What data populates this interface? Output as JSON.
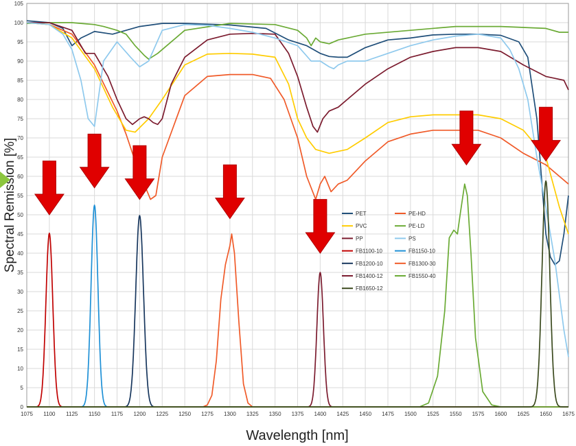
{
  "chart_data": {
    "type": "line",
    "xlabel": "Wavelength [nm]",
    "ylabel": "Spectral Remission [%]",
    "xlim": [
      1075,
      1675
    ],
    "ylim": [
      0,
      105
    ],
    "x_ticks": [
      1075,
      1100,
      1125,
      1150,
      1175,
      1200,
      1225,
      1250,
      1275,
      1300,
      1325,
      1350,
      1375,
      1400,
      1425,
      1450,
      1475,
      1500,
      1525,
      1550,
      1575,
      1600,
      1625,
      1650,
      1675
    ],
    "y_ticks": [
      0,
      5,
      10,
      15,
      20,
      25,
      30,
      35,
      40,
      45,
      50,
      55,
      60,
      65,
      70,
      75,
      80,
      85,
      90,
      95,
      100,
      105
    ],
    "grid": true,
    "legend_position": "center-right",
    "legend": [
      "PET",
      "PE-HD",
      "PVC",
      "PE-LD",
      "PP",
      "PS",
      "FB1100-10",
      "FB1150-10",
      "FB1200-10",
      "FB1300-30",
      "FB1400-12",
      "FB1550-40",
      "FB1650-12"
    ],
    "series": [
      {
        "name": "PET",
        "color": "#1f4e79",
        "x": [
          1075,
          1100,
          1115,
          1125,
          1135,
          1150,
          1170,
          1185,
          1200,
          1225,
          1250,
          1300,
          1340,
          1365,
          1385,
          1400,
          1410,
          1420,
          1430,
          1450,
          1475,
          1500,
          1525,
          1550,
          1575,
          1600,
          1620,
          1630,
          1640,
          1650,
          1655,
          1660,
          1665,
          1670,
          1675
        ],
        "y": [
          100.5,
          100,
          98.5,
          94,
          96,
          97.7,
          97,
          98,
          99,
          99.8,
          99.8,
          99.4,
          98.5,
          95.5,
          94,
          92,
          91.2,
          91,
          91,
          93.5,
          95.5,
          96,
          96.8,
          97,
          97,
          96.7,
          95,
          91,
          75,
          45,
          39,
          37,
          38,
          45,
          55
        ]
      },
      {
        "name": "PE-HD",
        "color": "#f05a28",
        "x": [
          1075,
          1100,
          1125,
          1150,
          1175,
          1185,
          1195,
          1205,
          1212,
          1218,
          1225,
          1250,
          1275,
          1300,
          1325,
          1345,
          1360,
          1375,
          1385,
          1395,
          1400,
          1405,
          1412,
          1420,
          1430,
          1450,
          1475,
          1500,
          1525,
          1550,
          1575,
          1600,
          1625,
          1650,
          1675
        ],
        "y": [
          100,
          99.5,
          97,
          89,
          77,
          71,
          64,
          58,
          54,
          55,
          65,
          81,
          86,
          86.5,
          86.5,
          85.5,
          80,
          70,
          60,
          54,
          58,
          60,
          56,
          58,
          59,
          64,
          69,
          71,
          72,
          72,
          72,
          70,
          66,
          63,
          58
        ]
      },
      {
        "name": "PVC",
        "color": "#ffcc00",
        "x": [
          1075,
          1100,
          1125,
          1150,
          1170,
          1185,
          1195,
          1210,
          1225,
          1250,
          1275,
          1300,
          1325,
          1350,
          1365,
          1375,
          1385,
          1395,
          1410,
          1420,
          1430,
          1450,
          1475,
          1500,
          1525,
          1550,
          1575,
          1600,
          1625,
          1650,
          1665,
          1675
        ],
        "y": [
          100,
          99.5,
          96,
          88,
          78,
          72,
          71.5,
          75,
          80,
          89,
          91.8,
          92,
          91.8,
          91,
          84,
          75,
          70,
          67,
          66,
          66.5,
          67,
          70,
          74,
          75.5,
          76,
          76,
          76,
          75,
          72,
          65,
          52,
          45
        ]
      },
      {
        "name": "PE-LD",
        "color": "#6aaa34",
        "x": [
          1075,
          1100,
          1125,
          1150,
          1160,
          1175,
          1185,
          1195,
          1205,
          1210,
          1220,
          1250,
          1300,
          1350,
          1375,
          1385,
          1390,
          1395,
          1400,
          1410,
          1420,
          1450,
          1500,
          1550,
          1600,
          1650,
          1665,
          1675
        ],
        "y": [
          99.8,
          100,
          100,
          99.5,
          99,
          98,
          97,
          94,
          91.5,
          90.5,
          92,
          98,
          99.8,
          99.5,
          98,
          96,
          94,
          96,
          95,
          94.5,
          95.5,
          97,
          98,
          99,
          99,
          98.5,
          97.5,
          97.5
        ]
      },
      {
        "name": "PP",
        "color": "#7b1b2e",
        "x": [
          1075,
          1100,
          1125,
          1140,
          1150,
          1165,
          1175,
          1185,
          1192,
          1200,
          1205,
          1210,
          1215,
          1220,
          1225,
          1235,
          1250,
          1275,
          1300,
          1325,
          1350,
          1365,
          1375,
          1385,
          1392,
          1397,
          1403,
          1410,
          1420,
          1430,
          1450,
          1475,
          1500,
          1525,
          1550,
          1575,
          1600,
          1625,
          1650,
          1660,
          1670,
          1675
        ],
        "y": [
          100,
          100,
          98,
          92,
          92,
          86,
          80,
          75,
          73.5,
          75,
          75.5,
          75,
          74,
          73.5,
          75,
          84,
          91,
          95.5,
          97,
          97.2,
          97,
          92,
          86,
          78,
          73,
          71.5,
          75,
          77,
          78,
          80,
          84,
          88,
          91,
          92.5,
          93.5,
          93.5,
          92.5,
          89,
          86,
          85.5,
          85,
          82.5
        ]
      },
      {
        "name": "PS",
        "color": "#8ec9ed",
        "x": [
          1075,
          1100,
          1115,
          1125,
          1135,
          1143,
          1150,
          1160,
          1175,
          1190,
          1200,
          1210,
          1225,
          1250,
          1275,
          1300,
          1325,
          1350,
          1375,
          1390,
          1400,
          1410,
          1415,
          1420,
          1430,
          1450,
          1475,
          1500,
          1525,
          1550,
          1575,
          1600,
          1610,
          1620,
          1630,
          1640,
          1650,
          1660,
          1670,
          1675
        ],
        "y": [
          100,
          99.5,
          97,
          93,
          85,
          75,
          73,
          90,
          95,
          91,
          88.5,
          90,
          98,
          99.5,
          99.3,
          98.5,
          97.5,
          96,
          94,
          90,
          90,
          88.5,
          88,
          89,
          90,
          90,
          92,
          94,
          95.5,
          96.5,
          97,
          96,
          93,
          88,
          80,
          65,
          52,
          38,
          20,
          13
        ]
      },
      {
        "name": "FB1100-10",
        "color": "#c00000",
        "center": 1100,
        "sigma": 3.8,
        "peak": 45.2
      },
      {
        "name": "FB1150-10",
        "color": "#1e90d6",
        "center": 1150,
        "sigma": 3.8,
        "peak": 52.5
      },
      {
        "name": "FB1200-10",
        "color": "#17365d",
        "center": 1200,
        "sigma": 4.3,
        "peak": 49.8
      },
      {
        "name": "FB1300-30",
        "color": "#f05a28",
        "x": [
          1270,
          1275,
          1280,
          1285,
          1290,
          1295,
          1300,
          1302,
          1305,
          1310,
          1315,
          1320,
          1325
        ],
        "y": [
          0,
          0.5,
          3,
          12,
          28,
          37,
          42,
          45,
          40,
          22,
          6,
          1,
          0
        ]
      },
      {
        "name": "FB1400-12",
        "color": "#7b1b2e",
        "center": 1400,
        "sigma": 3.6,
        "peak": 35
      },
      {
        "name": "FB1550-40",
        "color": "#6aaa34",
        "x": [
          1510,
          1520,
          1530,
          1538,
          1543,
          1548,
          1552,
          1555,
          1560,
          1563,
          1567,
          1572,
          1580,
          1590,
          1600
        ],
        "y": [
          0,
          1,
          8,
          25,
          44,
          46,
          45,
          50,
          58,
          55,
          40,
          18,
          4,
          0.5,
          0
        ]
      },
      {
        "name": "FB1650-12",
        "color": "#3b4a1e",
        "center": 1650,
        "sigma": 4.3,
        "peak": 58.8
      }
    ],
    "annotations": [
      {
        "type": "arrow",
        "label": "down-arrow",
        "target_x": 1100,
        "y_from": 64,
        "y_to": 50
      },
      {
        "type": "arrow",
        "label": "down-arrow",
        "target_x": 1150,
        "y_from": 71,
        "y_to": 57
      },
      {
        "type": "arrow",
        "label": "down-arrow",
        "target_x": 1200,
        "y_from": 68,
        "y_to": 54
      },
      {
        "type": "arrow",
        "label": "down-arrow",
        "target_x": 1300,
        "y_from": 63,
        "y_to": 49
      },
      {
        "type": "arrow",
        "label": "down-arrow",
        "target_x": 1400,
        "y_from": 54,
        "y_to": 40
      },
      {
        "type": "arrow",
        "label": "down-arrow",
        "target_x": 1562,
        "y_from": 77,
        "y_to": 63
      },
      {
        "type": "arrow",
        "label": "down-arrow",
        "target_x": 1650,
        "y_from": 78,
        "y_to": 64
      }
    ]
  }
}
